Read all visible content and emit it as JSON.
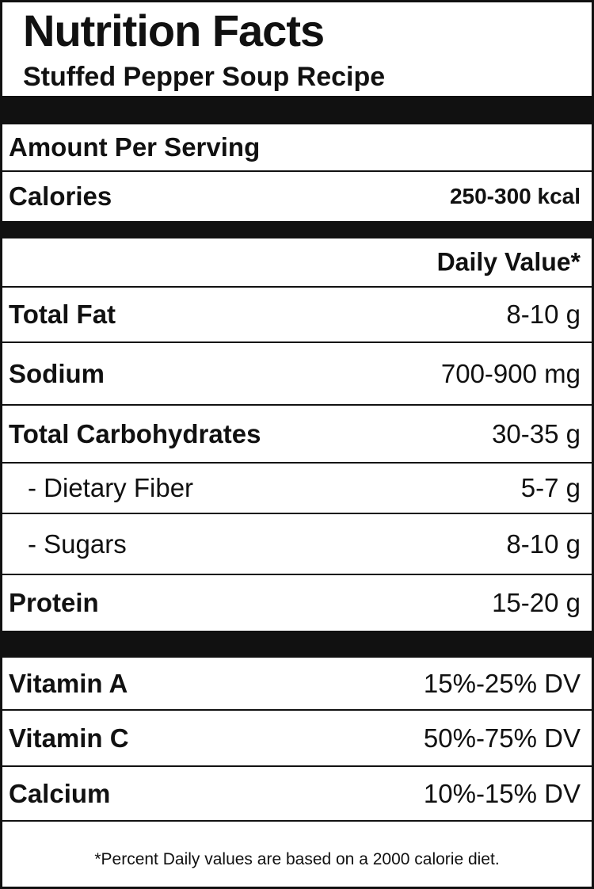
{
  "header": {
    "title": "Nutrition Facts",
    "subtitle": "Stuffed Pepper Soup Recipe"
  },
  "serving": {
    "amount_label": "Amount Per Serving",
    "calories_label": "Calories",
    "calories_value": "250-300 kcal"
  },
  "daily_value_header": "Daily Value*",
  "nutrients": [
    {
      "label": "Total Fat",
      "value": "8-10 g"
    },
    {
      "label": "Sodium",
      "value": "700-900 mg"
    },
    {
      "label": "Total Carbohydrates",
      "value": "30-35 g"
    },
    {
      "label": "- Dietary Fiber",
      "value": "5-7 g"
    },
    {
      "label": "- Sugars",
      "value": "8-10 g"
    },
    {
      "label": "Protein",
      "value": "15-20 g"
    }
  ],
  "vitamins": [
    {
      "label": "Vitamin A",
      "value": "15%-25% DV"
    },
    {
      "label": "Vitamin C",
      "value": "50%-75% DV"
    },
    {
      "label": "Calcium",
      "value": "10%-15% DV"
    }
  ],
  "footnote": "*Percent Daily values are based on a 2000 calorie diet.",
  "colors": {
    "ink": "#111111",
    "background": "#ffffff"
  }
}
